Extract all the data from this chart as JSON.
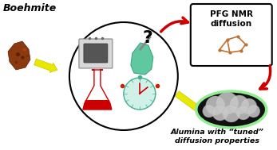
{
  "bg_color": "#ffffff",
  "title_text": "Boehmite",
  "title_fontsize": 9,
  "pfg_text": "PFG NMR\ndiffusion",
  "alumina_text": "Alumina with “tuned”\ndiffusion properties",
  "boehmite_color": "#8B3A10",
  "arrow_yellow": "#E8E800",
  "arrow_red": "#CC0000",
  "green_highlight": "#90EE90",
  "flask_red": "#CC0000",
  "clock_teal": "#40B090",
  "oven_gray": "#D0D0D0",
  "mixer_teal": "#60C8A0"
}
